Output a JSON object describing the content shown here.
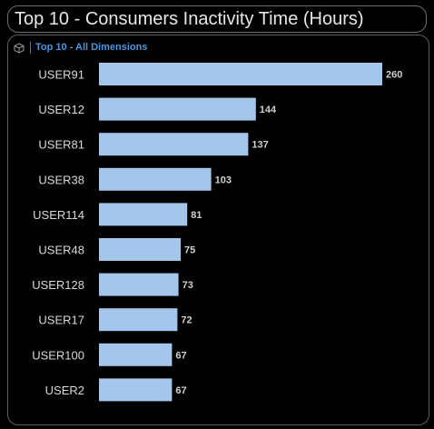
{
  "title": "Top 10 - Consumers Inactivity Time (Hours)",
  "panel": {
    "title": "Top 10 - All Dimensions",
    "icon": "cube-icon"
  },
  "colors": {
    "bar": "#a3c6ea",
    "category_label": "#d9d9d9",
    "value_label": "#cfcfcf"
  },
  "chart_data": {
    "type": "bar",
    "orientation": "horizontal",
    "categories": [
      "USER91",
      "USER12",
      "USER81",
      "USER38",
      "USER114",
      "USER48",
      "USER128",
      "USER17",
      "USER100",
      "USER2"
    ],
    "values": [
      260,
      144,
      137,
      103,
      81,
      75,
      73,
      72,
      67,
      67
    ],
    "title": "Top 10 - Consumers Inactivity Time (Hours)",
    "xlim": [
      0,
      260
    ],
    "grid": false,
    "data_labels": true
  }
}
